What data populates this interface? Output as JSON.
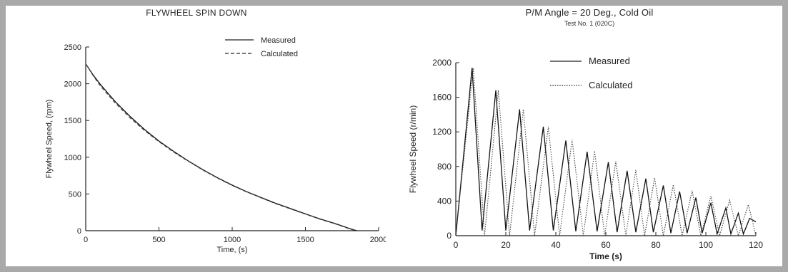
{
  "charts": [
    {
      "type": "line",
      "title": "FLYWHEEL SPIN DOWN",
      "xlabel": "Time, (s)",
      "ylabel": "Flywheel Speed, (rpm)",
      "xlim": [
        0,
        2000
      ],
      "ylim": [
        0,
        2500
      ],
      "xticks": [
        "0",
        "500",
        "1000",
        "1500",
        "2000"
      ],
      "yticks": [
        "0",
        "500",
        "1000",
        "1500",
        "2000",
        "2500"
      ],
      "legend": {
        "placement": "top-right",
        "entries": [
          "Measured",
          "Calculated"
        ]
      },
      "grid": false,
      "series": [
        {
          "name": "Measured",
          "style": "solid",
          "x": [
            0,
            50,
            100,
            200,
            300,
            400,
            500,
            600,
            700,
            800,
            900,
            1000,
            1100,
            1200,
            1300,
            1400,
            1500,
            1600,
            1700,
            1800,
            1850
          ],
          "y": [
            2270,
            2120,
            1990,
            1760,
            1560,
            1380,
            1220,
            1080,
            950,
            830,
            720,
            620,
            530,
            450,
            370,
            300,
            230,
            160,
            100,
            30,
            0
          ]
        },
        {
          "name": "Calculated",
          "style": "dashed",
          "x": [
            0,
            50,
            100,
            200,
            300,
            400,
            500,
            600,
            700,
            800,
            900,
            1000,
            1100,
            1200,
            1300,
            1400,
            1500,
            1600,
            1700,
            1800,
            1840
          ],
          "y": [
            2270,
            2110,
            1970,
            1740,
            1540,
            1365,
            1210,
            1070,
            945,
            825,
            715,
            615,
            525,
            445,
            365,
            295,
            225,
            155,
            95,
            25,
            0
          ]
        }
      ]
    },
    {
      "type": "line",
      "title": "P/M Angle = 20 Deg., Cold Oil",
      "subtitle": "Test No. 1 (020C)",
      "xlabel": "Time (s)",
      "ylabel": "Flywheel Speed (r/min)",
      "xlim": [
        0,
        120
      ],
      "ylim": [
        0,
        2000
      ],
      "xticks": [
        "0",
        "20",
        "40",
        "60",
        "80",
        "100",
        "120"
      ],
      "yticks": [
        "0",
        "400",
        "800",
        "1200",
        "1600",
        "2000"
      ],
      "legend": {
        "placement": "top-center",
        "entries": [
          "Measured",
          "Calculated"
        ]
      },
      "grid": false,
      "series": [
        {
          "name": "Measured",
          "style": "solid",
          "x": [
            0,
            6.5,
            10.5,
            16,
            20,
            25.5,
            29.5,
            35,
            39,
            44,
            48,
            52.5,
            56.5,
            61,
            64.5,
            68.5,
            72,
            76,
            79,
            83,
            86,
            89.5,
            92.5,
            96,
            98.5,
            102,
            104.5,
            108,
            110,
            113,
            115,
            117.5,
            120
          ],
          "y": [
            0,
            1940,
            60,
            1680,
            60,
            1460,
            60,
            1260,
            60,
            1100,
            50,
            970,
            50,
            850,
            40,
            750,
            40,
            660,
            40,
            580,
            30,
            510,
            30,
            440,
            30,
            380,
            20,
            320,
            20,
            260,
            20,
            200,
            160
          ]
        },
        {
          "name": "Calculated",
          "style": "dotted",
          "x": [
            0,
            7,
            11.5,
            17,
            21.5,
            27,
            31.5,
            37,
            41.5,
            46.5,
            51,
            55.5,
            59.5,
            64,
            68,
            72,
            75.5,
            79.5,
            83,
            87,
            90.5,
            94.5,
            98,
            102,
            105.5,
            109.5,
            113,
            117,
            120
          ],
          "y": [
            0,
            1940,
            0,
            1680,
            0,
            1460,
            0,
            1260,
            0,
            1110,
            0,
            980,
            0,
            860,
            0,
            760,
            0,
            670,
            0,
            590,
            0,
            520,
            0,
            460,
            0,
            410,
            0,
            360,
            0
          ]
        }
      ]
    }
  ]
}
